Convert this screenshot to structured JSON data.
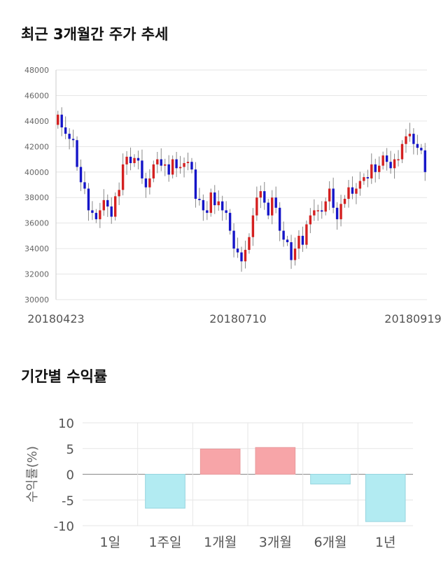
{
  "titles": {
    "price_chart": "최근 3개월간 주가 추세",
    "return_chart": "기간별 수익률"
  },
  "colors": {
    "up": "#d42020",
    "down": "#1515c8",
    "positive_bar": "#f7a5a8",
    "negative_bar": "#b2ebf2",
    "grid": "#e6e6e6"
  },
  "chart_data": [
    {
      "type": "candlestick",
      "title": "최근 3개월간 주가 추세",
      "ylim": [
        30000,
        48000
      ],
      "y_ticks": [
        "48000",
        "46000",
        "44000",
        "42000",
        "40000",
        "38000",
        "36000",
        "34000",
        "32000",
        "30000"
      ],
      "x_ticks": [
        "20180423",
        "20180710",
        "20180919"
      ],
      "grid": true,
      "close_series": [
        44500,
        43500,
        43000,
        42600,
        42500,
        40400,
        39200,
        38700,
        37000,
        36800,
        36300,
        37000,
        37800,
        37300,
        36500,
        38100,
        38600,
        40600,
        41200,
        40700,
        41100,
        40900,
        39500,
        38800,
        39500,
        40600,
        41000,
        40500,
        40600,
        39800,
        41000,
        40300,
        40400,
        40700,
        40800,
        40200,
        37900,
        37800,
        37000,
        36800,
        38400,
        37400,
        37700,
        37000,
        36800,
        35400,
        34000,
        33700,
        33000,
        33900,
        34900,
        36600,
        38000,
        38500,
        37600,
        36600,
        38000,
        37200,
        35400,
        34700,
        34500,
        33100,
        34000,
        35000,
        34300,
        35900,
        36600,
        37000,
        37000,
        36900,
        37700,
        38700,
        37200,
        36300,
        37500,
        37900,
        38800,
        38300,
        38700,
        39300,
        39600,
        39500,
        40600,
        40000,
        40500,
        41300,
        40800,
        40300,
        41000,
        41000,
        42200,
        42800,
        43000,
        42200,
        41900,
        41700,
        40000
      ]
    },
    {
      "type": "bar",
      "title": "기간별 수익률",
      "categories": [
        "1일",
        "1주일",
        "1개월",
        "3개월",
        "6개월",
        "1년"
      ],
      "values": [
        0,
        -6.6,
        4.9,
        5.2,
        -1.9,
        -9.2
      ],
      "ylabel": "수익률(%)",
      "ylim": [
        -10,
        10
      ],
      "y_ticks": [
        "10",
        "5",
        "0",
        "-5",
        "-10"
      ],
      "grid": true
    }
  ]
}
